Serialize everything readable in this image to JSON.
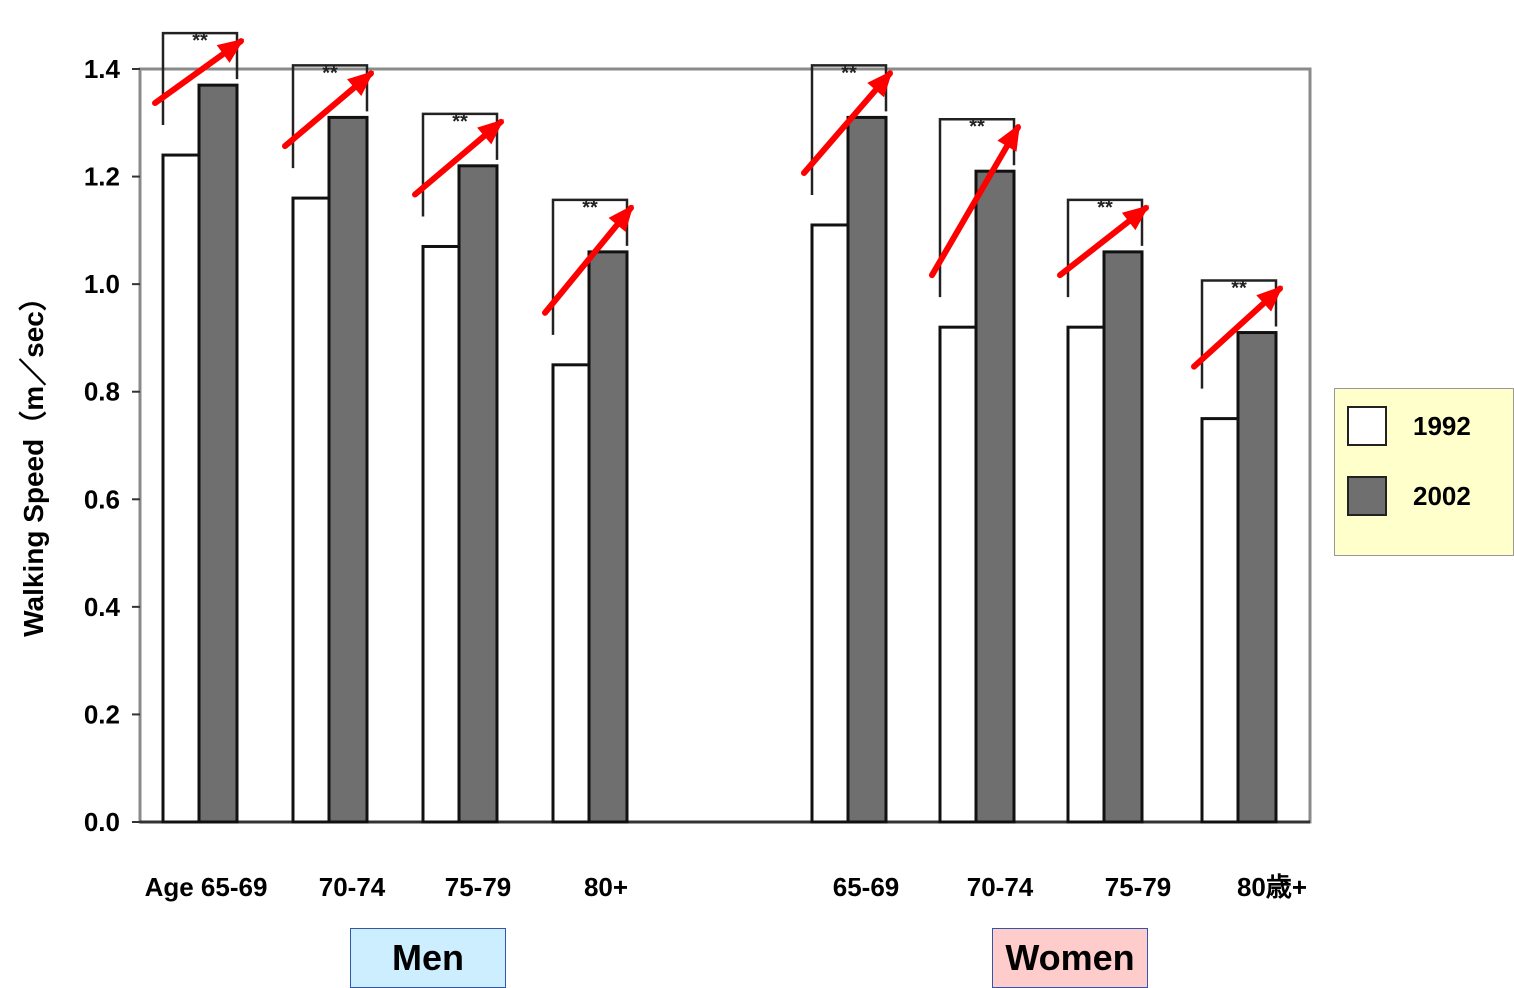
{
  "chart_data": {
    "type": "bar",
    "title": "",
    "xlabel": "",
    "ylabel": "Walking Speed（m／sec）",
    "ylim": [
      0,
      1.4
    ],
    "yticks": [
      "0.0",
      "0.2",
      "0.4",
      "0.6",
      "0.8",
      "1.0",
      "1.2",
      "1.4"
    ],
    "categories": [
      "Age 65-69",
      "70-74",
      "75-79",
      "80+",
      "65-69",
      "70-74",
      "75-79",
      "80歳+"
    ],
    "groups": [
      {
        "name": "Men",
        "categories": [
          "Age 65-69",
          "70-74",
          "75-79",
          "80+"
        ]
      },
      {
        "name": "Women",
        "categories": [
          "65-69",
          "70-74",
          "75-79",
          "80歳+"
        ]
      }
    ],
    "series": [
      {
        "name": "1992",
        "color": "#ffffff",
        "values": [
          1.24,
          1.16,
          1.07,
          0.85,
          1.11,
          0.92,
          0.92,
          0.75
        ]
      },
      {
        "name": "2002",
        "color": "#6f6f6f",
        "values": [
          1.37,
          1.31,
          1.22,
          1.06,
          1.31,
          1.21,
          1.06,
          0.91
        ]
      }
    ],
    "annotations": {
      "significance": "**",
      "trend_arrow_color": "#ff0000"
    },
    "grid": false,
    "legend": {
      "position": "right",
      "background": "#ffffcc"
    }
  },
  "labels": {
    "men_box": "Men",
    "women_box": "Women"
  },
  "colors": {
    "men_box_bg": "#cceeff",
    "women_box_bg": "#ffcccc"
  }
}
